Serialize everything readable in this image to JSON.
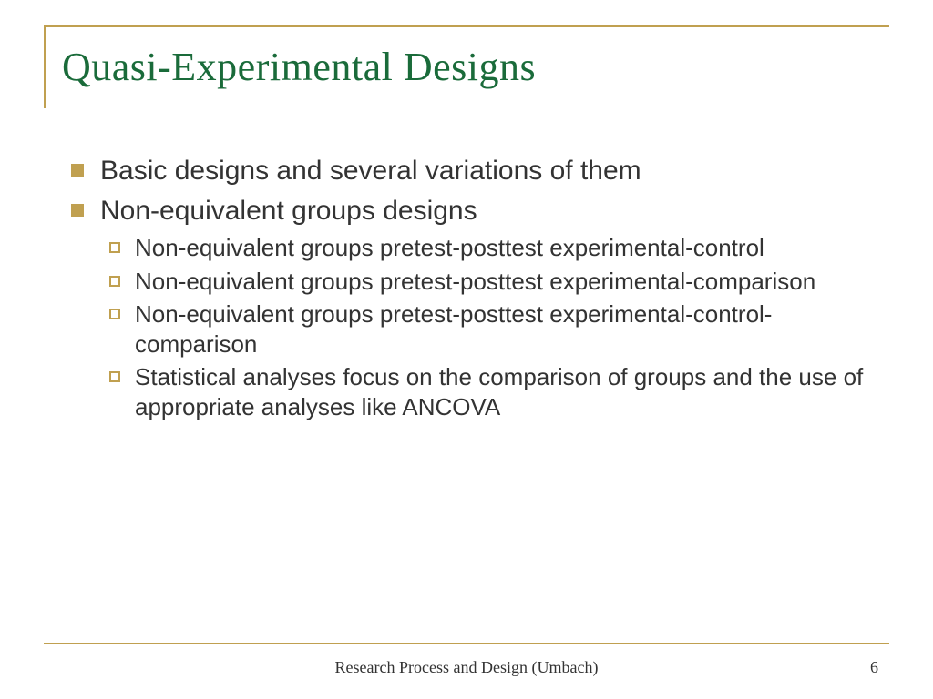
{
  "slide": {
    "title": "Quasi-Experimental Designs",
    "bullets": [
      {
        "level": 1,
        "text": "Basic designs and several variations of them"
      },
      {
        "level": 1,
        "text": "Non-equivalent groups designs"
      },
      {
        "level": 2,
        "text": "Non-equivalent groups pretest-posttest experimental-control"
      },
      {
        "level": 2,
        "text": "Non-equivalent groups pretest-posttest experimental-comparison"
      },
      {
        "level": 2,
        "text": "Non-equivalent groups pretest-posttest experimental-control-comparison"
      },
      {
        "level": 2,
        "text": "Statistical analyses focus on the comparison of groups and the use of appropriate analyses like ANCOVA"
      }
    ],
    "footer": "Research Process and Design (Umbach)",
    "page_number": "6"
  },
  "styles": {
    "title_color": "#1a6b3a",
    "accent_color": "#c0a050",
    "text_color": "#333333",
    "background_color": "#ffffff",
    "title_font": "Garamond",
    "body_font": "Arial",
    "footer_font": "Times New Roman",
    "title_fontsize": 44,
    "l1_fontsize": 30,
    "l2_fontsize": 26,
    "footer_fontsize": 18
  }
}
